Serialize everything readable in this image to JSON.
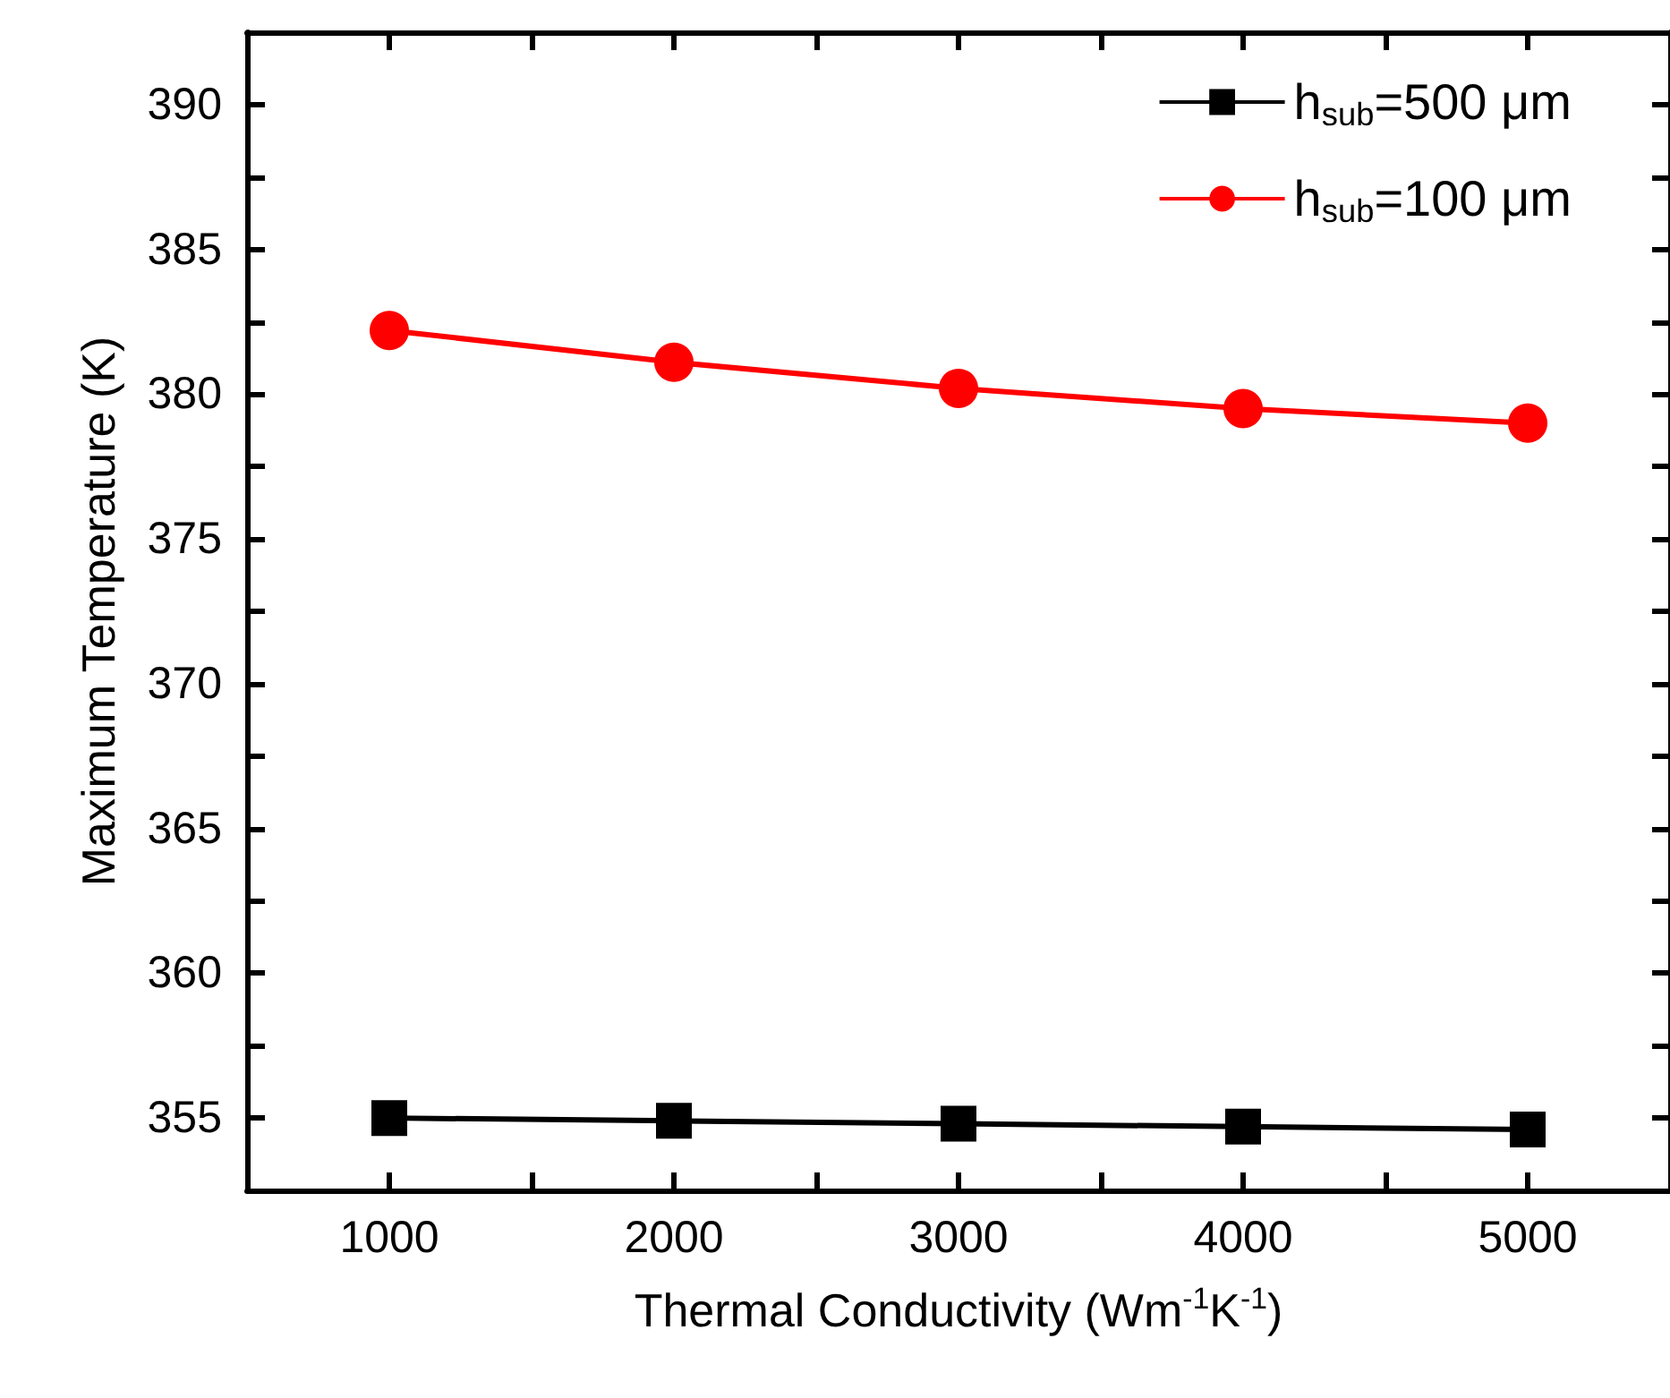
{
  "chart_data": {
    "type": "line",
    "xlabel": "Thermal Conductivity (Wm$^{-1}$K$^{-1}$)",
    "ylabel": "Maximum Temperature (K)",
    "x": [
      1000,
      2000,
      3000,
      4000,
      5000
    ],
    "series": [
      {
        "name": "h$_{sub}$=500 μm",
        "color": "#000000",
        "marker": "square",
        "values": [
          355.0,
          354.9,
          354.8,
          354.7,
          354.6
        ]
      },
      {
        "name": "h$_{sub}$=100 μm",
        "color": "#ff0000",
        "marker": "circle",
        "values": [
          382.2,
          381.1,
          380.2,
          379.5,
          379.0
        ]
      }
    ],
    "xlim": [
      500,
      5500
    ],
    "xticks": [
      {
        "value": 500,
        "label": null
      },
      1000,
      {
        "value": 1500,
        "label": null
      },
      2000,
      {
        "value": 2500,
        "label": null
      },
      3000,
      {
        "value": 3500,
        "label": null
      },
      4000,
      {
        "value": 4500,
        "label": null
      },
      5000,
      {
        "value": 5500,
        "label": null
      }
    ],
    "ylim": [
      352.5,
      392.5
    ],
    "yticks": [
      {
        "value": 352.5,
        "label": null
      },
      355,
      {
        "value": 357.5,
        "label": null
      },
      360,
      {
        "value": 362.5,
        "label": null
      },
      365,
      {
        "value": 367.5,
        "label": null
      },
      370,
      {
        "value": 372.5,
        "label": null
      },
      375,
      {
        "value": 377.5,
        "label": null
      },
      380,
      {
        "value": 382.5,
        "label": null
      },
      385,
      {
        "value": 387.5,
        "label": null
      },
      390,
      {
        "value": 392.5,
        "label": null
      }
    ],
    "grid": false,
    "legend": "top right",
    "line_style": "solid"
  }
}
